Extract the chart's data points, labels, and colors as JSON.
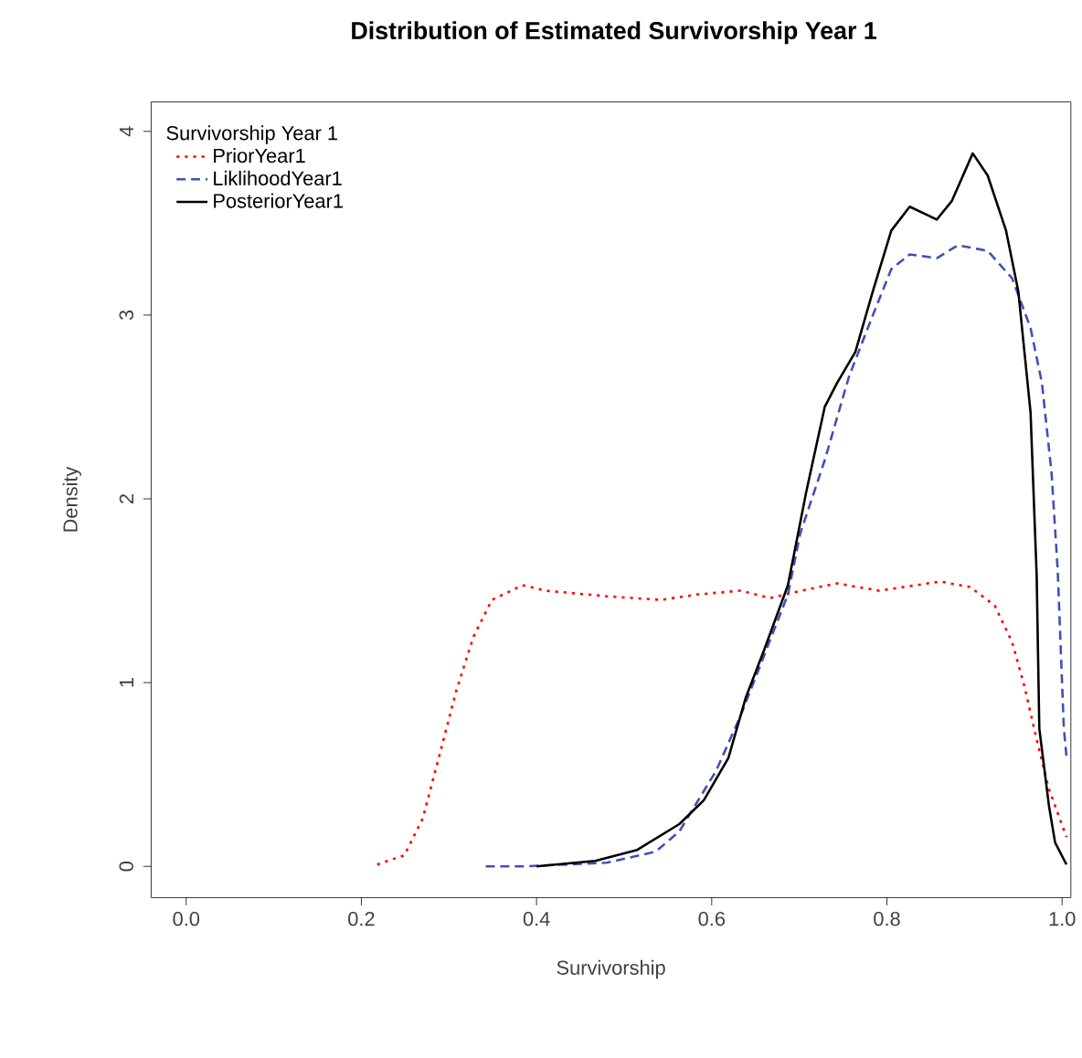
{
  "chart_data": {
    "type": "line",
    "title": "Distribution of Estimated Survivorship Year 1",
    "xlabel": "Survivorship",
    "ylabel": "Density",
    "legend_title": "Survivorship Year 1",
    "legend": "top left",
    "xlim": [
      -0.04,
      1.01
    ],
    "ylim": [
      -0.17,
      4.16
    ],
    "xticks": [
      {
        "value": 0,
        "label": "0.0"
      },
      0.2,
      0.4,
      0.6,
      0.8,
      {
        "value": 1,
        "label": "1.0"
      }
    ],
    "yticks": [
      0,
      1,
      2,
      3,
      4
    ],
    "grid": false,
    "series": [
      {
        "name": "PriorYear1",
        "color": "#ff0000",
        "line_style": "dotted",
        "x": [
          0.218,
          0.249,
          0.27,
          0.29,
          0.308,
          0.328,
          0.349,
          0.384,
          0.411,
          0.48,
          0.542,
          0.584,
          0.633,
          0.667,
          0.702,
          0.743,
          0.791,
          0.861,
          0.895,
          0.923,
          0.943,
          0.957,
          0.971,
          0.985,
          1.005
        ],
        "values": [
          0.01,
          0.06,
          0.26,
          0.62,
          0.95,
          1.25,
          1.45,
          1.53,
          1.5,
          1.47,
          1.45,
          1.48,
          1.5,
          1.46,
          1.5,
          1.54,
          1.5,
          1.55,
          1.52,
          1.42,
          1.22,
          0.98,
          0.69,
          0.42,
          0.16
        ]
      },
      {
        "name": "LiklihoodYear1",
        "color": "#3f51b5",
        "line_style": "dashed",
        "x": [
          0.342,
          0.384,
          0.48,
          0.536,
          0.563,
          0.605,
          0.633,
          0.66,
          0.687,
          0.701,
          0.729,
          0.757,
          0.784,
          0.805,
          0.826,
          0.857,
          0.881,
          0.915,
          0.943,
          0.964,
          0.977,
          0.988,
          0.995,
          1.002,
          1.005
        ],
        "values": [
          0,
          0,
          0.02,
          0.08,
          0.19,
          0.52,
          0.82,
          1.15,
          1.48,
          1.81,
          2.21,
          2.67,
          3.0,
          3.25,
          3.33,
          3.31,
          3.38,
          3.35,
          3.2,
          2.93,
          2.63,
          2.14,
          1.61,
          0.75,
          0.6
        ]
      },
      {
        "name": "PosteriorYear1",
        "color": "#000000",
        "line_style": "solid",
        "x": [
          0.4,
          0.467,
          0.515,
          0.563,
          0.591,
          0.619,
          0.639,
          0.66,
          0.687,
          0.708,
          0.729,
          0.743,
          0.764,
          0.784,
          0.805,
          0.826,
          0.857,
          0.874,
          0.898,
          0.915,
          0.936,
          0.95,
          0.964,
          0.971,
          0.974,
          0.985,
          0.992,
          1.005
        ],
        "values": [
          0,
          0.03,
          0.09,
          0.23,
          0.36,
          0.59,
          0.92,
          1.18,
          1.53,
          2.04,
          2.5,
          2.63,
          2.8,
          3.13,
          3.46,
          3.59,
          3.52,
          3.62,
          3.88,
          3.76,
          3.46,
          3.13,
          2.47,
          1.58,
          0.75,
          0.33,
          0.13,
          0.01
        ]
      }
    ]
  }
}
